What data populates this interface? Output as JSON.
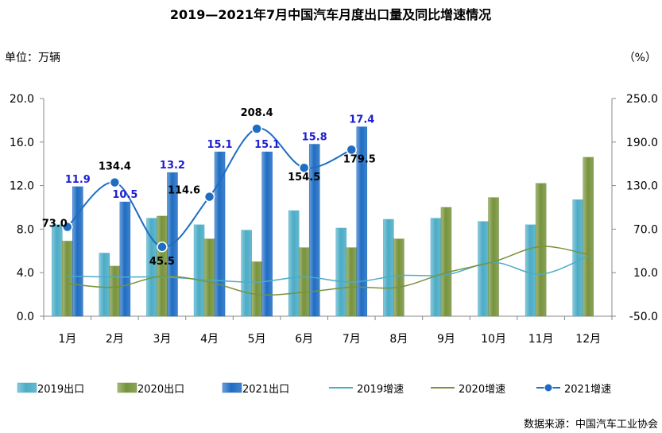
{
  "chart_data": {
    "type": "bar",
    "title": "2019—2021年7月中国汽车月度出口量及同比增速情况",
    "left_unit": "单位：万辆",
    "right_unit": "（%）",
    "source": "数据来源：中国汽车工业协会",
    "categories": [
      "1月",
      "2月",
      "3月",
      "4月",
      "5月",
      "6月",
      "7月",
      "8月",
      "9月",
      "10月",
      "11月",
      "12月"
    ],
    "y_left": {
      "min": 0,
      "max": 20,
      "ticks": [
        "0.0",
        "4.0",
        "8.0",
        "12.0",
        "16.0",
        "20.0"
      ]
    },
    "y_right": {
      "min": -50,
      "max": 250,
      "ticks": [
        "-50.0",
        "10.0",
        "70.0",
        "130.0",
        "190.0",
        "250.0"
      ]
    },
    "bar_series": [
      {
        "name": "2019出口",
        "color": "#4bacc6",
        "values": [
          8.4,
          5.8,
          9.0,
          8.4,
          7.9,
          9.7,
          8.1,
          8.9,
          9.0,
          8.7,
          8.4,
          10.7
        ]
      },
      {
        "name": "2020出口",
        "color": "#77933c",
        "values": [
          6.9,
          4.6,
          9.2,
          7.1,
          5.0,
          6.3,
          6.3,
          7.1,
          10.0,
          10.9,
          12.2,
          14.6
        ]
      },
      {
        "name": "2021出口",
        "color": "#1f6dc3",
        "values": [
          11.9,
          10.5,
          13.2,
          15.1,
          15.1,
          15.8,
          17.4
        ]
      }
    ],
    "bar_labels_2021": [
      "11.9",
      "10.5",
      "13.2",
      "15.1",
      "15.1",
      "15.8",
      "17.4"
    ],
    "line_series": [
      {
        "name": "2019增速",
        "color": "#4bacc6",
        "values": [
          5,
          4,
          4,
          0,
          -3,
          4,
          -3,
          6,
          7,
          24,
          8,
          33
        ]
      },
      {
        "name": "2020增速",
        "color": "#77933c",
        "values": [
          -5,
          -10,
          5,
          -3,
          -20,
          -17,
          -10,
          -10,
          10,
          25,
          46,
          35
        ]
      },
      {
        "name": "2021增速",
        "color": "#1f6dc3",
        "values": [
          73.0,
          134.4,
          45.5,
          114.6,
          208.4,
          154.5,
          179.5
        ]
      }
    ],
    "line_labels_2021": [
      "73.0",
      "134.4",
      "45.5",
      "114.6",
      "208.4",
      "154.5",
      "179.5"
    ],
    "legend": [
      "2019出口",
      "2020出口",
      "2021出口",
      "2019增速",
      "2020增速",
      "2021增速"
    ],
    "legend_position": "bottom",
    "grid": false
  }
}
